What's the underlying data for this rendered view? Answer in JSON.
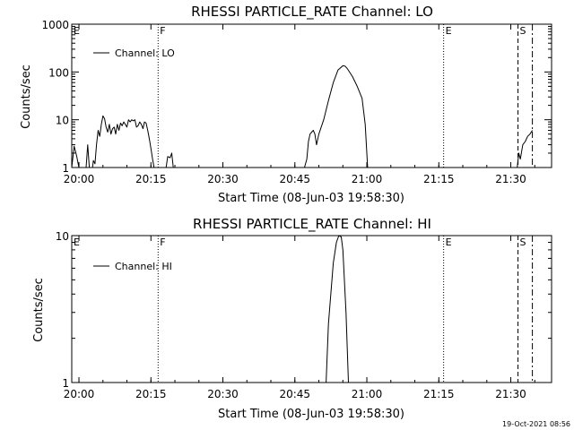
{
  "footer_timestamp": "19-Oct-2021 08:56",
  "chart_data": [
    {
      "type": "line",
      "title": "RHESSI PARTICLE_RATE Channel: LO",
      "xlabel": "Start Time (08-Jun-03 19:58:30)",
      "ylabel": "Counts/sec",
      "yscale": "log",
      "xlim": [
        "19:58:30",
        "21:38:30"
      ],
      "ylim": [
        1,
        1000
      ],
      "x_ticks": [
        "20:00",
        "20:15",
        "20:30",
        "20:45",
        "21:00",
        "21:15",
        "21:30"
      ],
      "y_ticks": [
        "1",
        "10",
        "100",
        "1000"
      ],
      "legend": {
        "position": "top-left",
        "entries": [
          "Channel: LO"
        ]
      },
      "markers": [
        {
          "label": "E",
          "time": "19:58:30",
          "style": "dotted"
        },
        {
          "label": "F",
          "time": "20:16:30",
          "style": "dotted"
        },
        {
          "label": "E",
          "time": "21:16:00",
          "style": "dotted"
        },
        {
          "label": "S",
          "time": "21:31:30",
          "style": "dashed"
        },
        {
          "label": "",
          "time": "21:34:30",
          "style": "dashdot"
        }
      ],
      "series": [
        {
          "name": "Channel: LO",
          "segments": [
            [
              [
                "19:58:30",
                0.5
              ],
              [
                "19:59:00",
                2.8
              ],
              [
                "19:59:30",
                1.8
              ],
              [
                "20:00:00",
                0.5
              ]
            ],
            [
              [
                "20:01:30",
                0.5
              ],
              [
                "20:01:50",
                3.0
              ],
              [
                "20:02:10",
                0.5
              ]
            ],
            [
              [
                "20:02:50",
                0.5
              ],
              [
                "20:03:00",
                1.4
              ],
              [
                "20:03:20",
                1.2
              ],
              [
                "20:03:40",
                3.0
              ],
              [
                "20:04:00",
                6.0
              ],
              [
                "20:04:20",
                4.5
              ],
              [
                "20:04:40",
                8.0
              ],
              [
                "20:05:00",
                12.0
              ],
              [
                "20:05:20",
                10.5
              ],
              [
                "20:05:40",
                7.0
              ],
              [
                "20:06:00",
                5.5
              ],
              [
                "20:06:20",
                8.0
              ],
              [
                "20:06:40",
                5.0
              ],
              [
                "20:07:00",
                6.5
              ],
              [
                "20:07:20",
                7.0
              ],
              [
                "20:07:40",
                5.0
              ],
              [
                "20:08:00",
                8.0
              ],
              [
                "20:08:20",
                6.0
              ],
              [
                "20:08:40",
                8.5
              ],
              [
                "20:09:00",
                7.5
              ],
              [
                "20:09:20",
                9.0
              ],
              [
                "20:09:40",
                8.0
              ],
              [
                "20:10:00",
                7.0
              ],
              [
                "20:10:20",
                10.0
              ],
              [
                "20:10:40",
                9.0
              ],
              [
                "20:11:00",
                10.0
              ],
              [
                "20:11:20",
                9.5
              ],
              [
                "20:11:40",
                10.0
              ],
              [
                "20:12:00",
                7.0
              ],
              [
                "20:12:20",
                7.5
              ],
              [
                "20:12:40",
                9.0
              ],
              [
                "20:13:00",
                8.0
              ],
              [
                "20:13:20",
                6.5
              ],
              [
                "20:13:40",
                9.0
              ],
              [
                "20:14:00",
                8.5
              ],
              [
                "20:14:20",
                6.0
              ],
              [
                "20:14:40",
                4.0
              ],
              [
                "20:15:00",
                2.5
              ],
              [
                "20:15:20",
                1.5
              ],
              [
                "20:15:40",
                1.0
              ],
              [
                "20:16:00",
                0.5
              ]
            ],
            [
              [
                "20:18:10",
                0.5
              ],
              [
                "20:18:30",
                1.7
              ],
              [
                "20:19:00",
                1.6
              ],
              [
                "20:19:20",
                2.0
              ],
              [
                "20:19:40",
                1.0
              ],
              [
                "20:20:00",
                0.5
              ]
            ],
            [
              [
                "20:47:00",
                0.5
              ],
              [
                "20:47:30",
                1.5
              ],
              [
                "20:47:50",
                3.5
              ],
              [
                "20:48:10",
                5.0
              ],
              [
                "20:48:30",
                5.5
              ],
              [
                "20:48:50",
                6.0
              ],
              [
                "20:49:10",
                5.0
              ],
              [
                "20:49:30",
                3.0
              ],
              [
                "20:50:00",
                5.0
              ],
              [
                "20:51:00",
                10.0
              ],
              [
                "20:52:00",
                25.0
              ],
              [
                "20:53:00",
                60.0
              ],
              [
                "20:54:00",
                110.0
              ],
              [
                "20:55:00",
                135.0
              ],
              [
                "20:55:30",
                132.0
              ],
              [
                "20:56:00",
                115.0
              ],
              [
                "20:57:00",
                80.0
              ],
              [
                "20:58:00",
                50.0
              ],
              [
                "20:59:00",
                28.0
              ],
              [
                "20:59:40",
                8.0
              ],
              [
                "21:00:00",
                2.0
              ],
              [
                "21:00:10",
                0.5
              ]
            ],
            [
              [
                "21:31:20",
                0.5
              ],
              [
                "21:31:40",
                2.0
              ],
              [
                "21:32:00",
                1.5
              ],
              [
                "21:32:30",
                3.0
              ],
              [
                "21:33:00",
                3.5
              ],
              [
                "21:33:30",
                4.5
              ],
              [
                "21:34:00",
                5.0
              ],
              [
                "21:34:30",
                6.0
              ]
            ]
          ]
        }
      ]
    },
    {
      "type": "line",
      "title": "RHESSI PARTICLE_RATE Channel: HI",
      "xlabel": "Start Time (08-Jun-03 19:58:30)",
      "ylabel": "Counts/sec",
      "yscale": "log",
      "xlim": [
        "19:58:30",
        "21:38:30"
      ],
      "ylim": [
        1,
        10
      ],
      "x_ticks": [
        "20:00",
        "20:15",
        "20:30",
        "20:45",
        "21:00",
        "21:15",
        "21:30"
      ],
      "y_ticks": [
        "1",
        "10"
      ],
      "legend": {
        "position": "top-left",
        "entries": [
          "Channel: HI"
        ]
      },
      "markers": [
        {
          "label": "E",
          "time": "19:58:30",
          "style": "dotted"
        },
        {
          "label": "F",
          "time": "20:16:30",
          "style": "dotted"
        },
        {
          "label": "E",
          "time": "21:16:00",
          "style": "dotted"
        },
        {
          "label": "S",
          "time": "21:31:30",
          "style": "dashed"
        },
        {
          "label": "",
          "time": "21:34:30",
          "style": "dashdot"
        }
      ],
      "series": [
        {
          "name": "Channel: HI",
          "segments": [
            [
              [
                "20:51:30",
                0.9
              ],
              [
                "20:52:00",
                2.5
              ],
              [
                "20:53:00",
                6.5
              ],
              [
                "20:53:40",
                9.0
              ],
              [
                "20:54:10",
                10.2
              ],
              [
                "20:54:40",
                9.8
              ],
              [
                "20:55:00",
                8.0
              ],
              [
                "20:55:40",
                3.0
              ],
              [
                "20:56:10",
                0.9
              ]
            ]
          ]
        }
      ]
    }
  ]
}
